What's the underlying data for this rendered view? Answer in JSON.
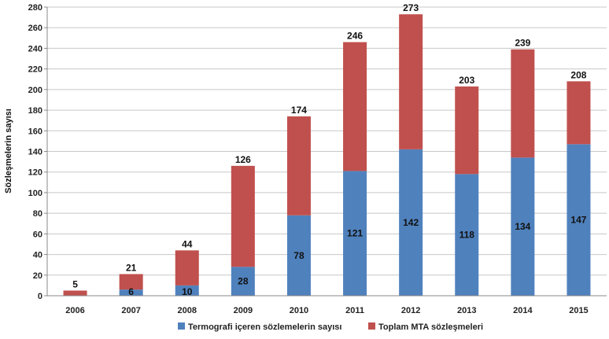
{
  "chart_data": {
    "type": "bar",
    "stacked": true,
    "categories": [
      "2006",
      "2007",
      "2008",
      "2009",
      "2010",
      "2011",
      "2012",
      "2013",
      "2014",
      "2015"
    ],
    "series": [
      {
        "name": "Termografi içeren sözlemelerin sayısı",
        "color": "#4f81bd",
        "values": [
          0,
          6,
          10,
          28,
          78,
          121,
          142,
          118,
          134,
          147
        ],
        "labels": [
          "",
          "6",
          "10",
          "28",
          "78",
          "121",
          "142",
          "118",
          "134",
          "147"
        ]
      },
      {
        "name": "Toplam MTA sözleşmeleri",
        "color": "#c0504d",
        "values": [
          5,
          15,
          34,
          98,
          96,
          125,
          131,
          85,
          105,
          61
        ]
      }
    ],
    "totals": [
      5,
      21,
      44,
      126,
      174,
      246,
      273,
      203,
      239,
      208
    ],
    "ylabel": "Sözleşmelerin sayısı",
    "xlabel": "",
    "ylim": [
      0,
      280
    ],
    "yticks": [
      0,
      20,
      40,
      60,
      80,
      100,
      120,
      140,
      160,
      180,
      200,
      220,
      240,
      260,
      280
    ],
    "grid": true,
    "legend_position": "bottom"
  }
}
